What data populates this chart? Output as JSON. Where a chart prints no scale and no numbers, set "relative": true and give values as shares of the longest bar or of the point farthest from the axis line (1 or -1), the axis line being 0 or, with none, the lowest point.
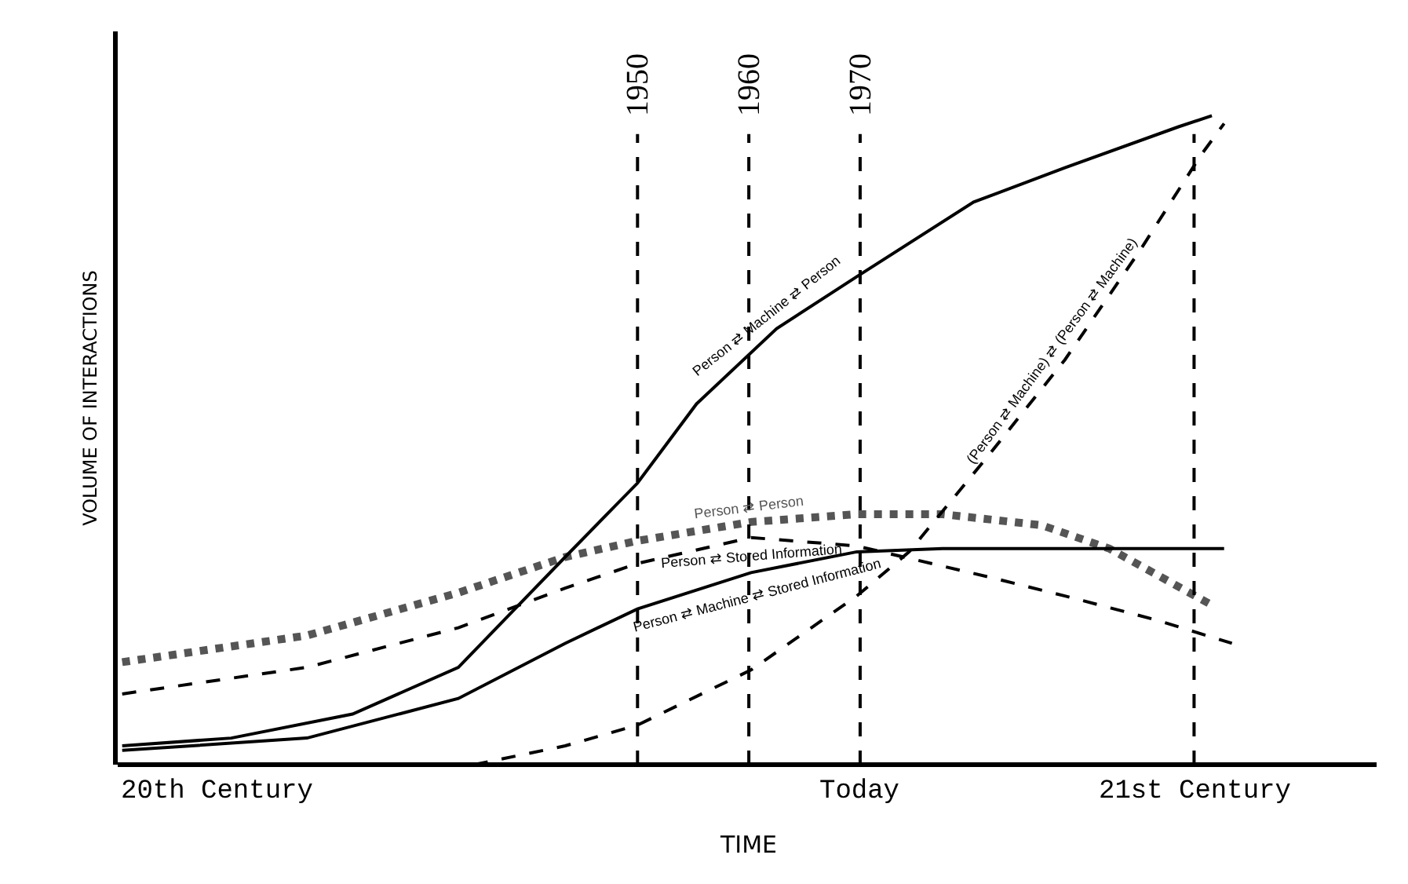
{
  "chart_data": {
    "type": "line",
    "relative": true,
    "xlabel": "TIME",
    "ylabel": "VOLUME OF INTERACTIONS",
    "xlim": [
      1903.3,
      2016.4
    ],
    "xticks": [
      1950,
      1960,
      1970
    ],
    "tick_labels": "x",
    "annotations": [
      "20th Century",
      {
        "text": "Today",
        "x": 1970,
        "y": 0
      }
    ],
    "grid": false,
    "legend": false,
    "marker": "none",
    "series": [
      {
        "name": "Person ⇄ Person",
        "color": "#555555",
        "line_style": "dotted",
        "x": [
          1903.7,
          1920.3,
          1933.9,
          1943.5,
          1950,
          1960.2,
          1969.7,
          1977.4,
          1986.3,
          1992.4,
          2001.9
        ],
        "values": [
          0.158,
          0.199,
          0.265,
          0.32,
          0.345,
          0.374,
          0.386,
          0.386,
          0.369,
          0.333,
          0.243
        ]
      },
      {
        "name": "Person ⇄ Stored Information",
        "color": "#000000",
        "line_style": "dashed",
        "x": [
          1903.7,
          1920.3,
          1933.9,
          1943.5,
          1950,
          1960.2,
          1969.7,
          1981.6,
          1988.4,
          1996.6,
          2003.4
        ],
        "values": [
          0.109,
          0.15,
          0.211,
          0.272,
          0.31,
          0.35,
          0.337,
          0.289,
          0.26,
          0.223,
          0.187
        ]
      },
      {
        "name": "Person ⇄ Machine ⇄ Stored Information",
        "color": "#000000",
        "line_style": "solid",
        "x": [
          1903.7,
          1920.3,
          1933.9,
          1943.5,
          1950,
          1960.2,
          1969.7,
          1977.4,
          1988.4,
          2002.7
        ],
        "values": [
          0.022,
          0.041,
          0.102,
          0.187,
          0.24,
          0.296,
          0.328,
          0.333,
          0.333,
          0.333
        ]
      },
      {
        "name": "Person ⇄ Machine ⇄ Person",
        "color": "#000000",
        "line_style": "solid",
        "x": [
          1903.7,
          1913.5,
          1924.4,
          1933.9,
          1943.5,
          1950,
          1955.3,
          1962.5,
          1969.7,
          1980.2,
          1988.4,
          1998.6,
          2001.6
        ],
        "values": [
          0.029,
          0.041,
          0.078,
          0.15,
          0.32,
          0.434,
          0.556,
          0.672,
          0.752,
          0.867,
          0.92,
          0.983,
          1.0
        ]
      },
      {
        "name": "(Person ⇄ Machine) ⇄ (Person ⇄ Machine)",
        "color": "#000000",
        "line_style": "dashed",
        "x": [
          1935.3,
          1943.5,
          1950,
          1960.2,
          1969.7,
          1974.4,
          1981.6,
          1988.4,
          1995.2,
          2000.6,
          2002.7
        ],
        "values": [
          0.0,
          0.029,
          0.061,
          0.146,
          0.26,
          0.328,
          0.478,
          0.624,
          0.794,
          0.939,
          0.988
        ]
      }
    ],
    "ref_lines": [
      {
        "axis": "x",
        "value": 1950,
        "label": null,
        "line_style": "dashed"
      },
      {
        "axis": "x",
        "value": 1960,
        "label": null,
        "line_style": "dashed"
      },
      {
        "axis": "x",
        "value": 1970,
        "label": null,
        "line_style": "dashed"
      },
      {
        "axis": "x",
        "value": 2000,
        "label": "21st Century",
        "line_style": "dashed"
      }
    ]
  }
}
